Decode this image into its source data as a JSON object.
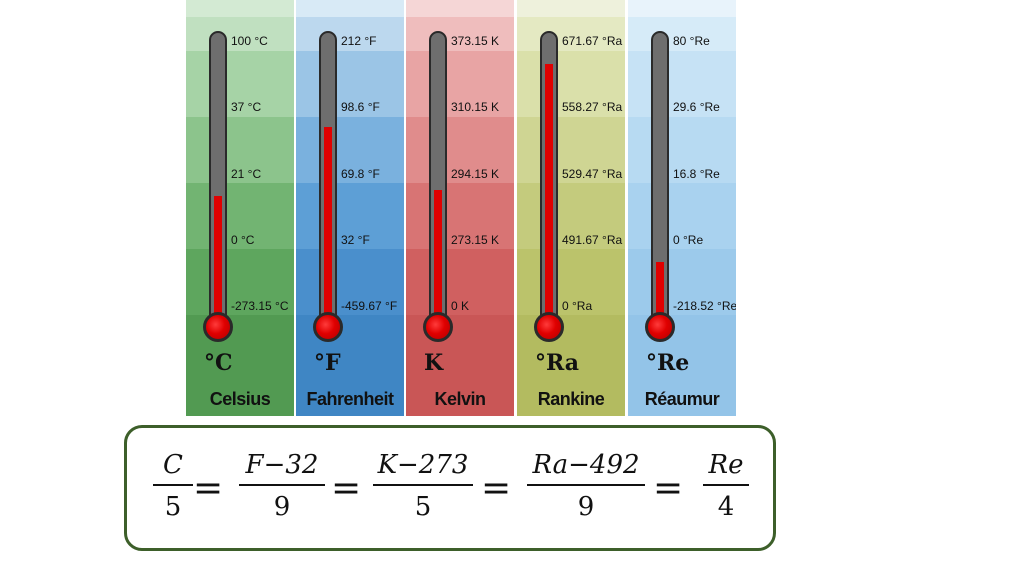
{
  "scales": [
    {
      "id": "celsius",
      "name": "Celsius",
      "symbol": "°C",
      "colors": [
        "#d3ead3",
        "#c0e0c0",
        "#a6d3a6",
        "#8cc48c",
        "#72b472",
        "#5ea65e",
        "#529a52"
      ],
      "fill_level": 0.43,
      "ticks": [
        "100 °C",
        "37 °C",
        "21 °C",
        "0 °C",
        "-273.15 °C"
      ]
    },
    {
      "id": "fahrenheit",
      "name": "Fahrenheit",
      "symbol": "°F",
      "colors": [
        "#d8eaf6",
        "#bcd8ee",
        "#9bc5e6",
        "#7ab1de",
        "#5d9fd6",
        "#4a8fcc",
        "#3f86c4"
      ],
      "fill_level": 0.67,
      "ticks": [
        "212 °F",
        "98.6 °F",
        "69.8 °F",
        "32 °F",
        "-459.67 °F"
      ]
    },
    {
      "id": "kelvin",
      "name": "Kelvin",
      "symbol": "K",
      "colors": [
        "#f5d6d6",
        "#efbdbd",
        "#e8a4a4",
        "#e08c8c",
        "#d87474",
        "#d06060",
        "#c95656"
      ],
      "fill_level": 0.45,
      "ticks": [
        "373.15 K",
        "310.15 K",
        "294.15 K",
        "273.15 K",
        "0 K"
      ]
    },
    {
      "id": "rankine",
      "name": "Rankine",
      "symbol": "°Ra",
      "colors": [
        "#eef1dc",
        "#e4e9c2",
        "#dae0aa",
        "#cfd593",
        "#c4cb7d",
        "#bbc36b",
        "#b3bb60"
      ],
      "fill_level": 0.89,
      "ticks": [
        "671.67 °Ra",
        "558.27 °Ra",
        "529.47 °Ra",
        "491.67 °Ra",
        "0 °Ra"
      ]
    },
    {
      "id": "reaumur",
      "name": "Réaumur",
      "symbol": "°Re",
      "colors": [
        "#e8f3fb",
        "#d6ebf8",
        "#c6e2f5",
        "#b7daf2",
        "#a9d2ef",
        "#9ccaeb",
        "#93c4e8"
      ],
      "fill_level": 0.2,
      "ticks": [
        "80 °Re",
        "29.6 °Re",
        "16.8 °Re",
        "0 °Re",
        "-218.52 °Re"
      ]
    }
  ],
  "formula": {
    "terms": [
      {
        "num": "C",
        "den": "5"
      },
      {
        "num": "F−32",
        "den": "9"
      },
      {
        "num": "K−273",
        "den": "5"
      },
      {
        "num": "Ra−492",
        "den": "9"
      },
      {
        "num": "Re",
        "den": "4"
      }
    ],
    "equals": "="
  }
}
